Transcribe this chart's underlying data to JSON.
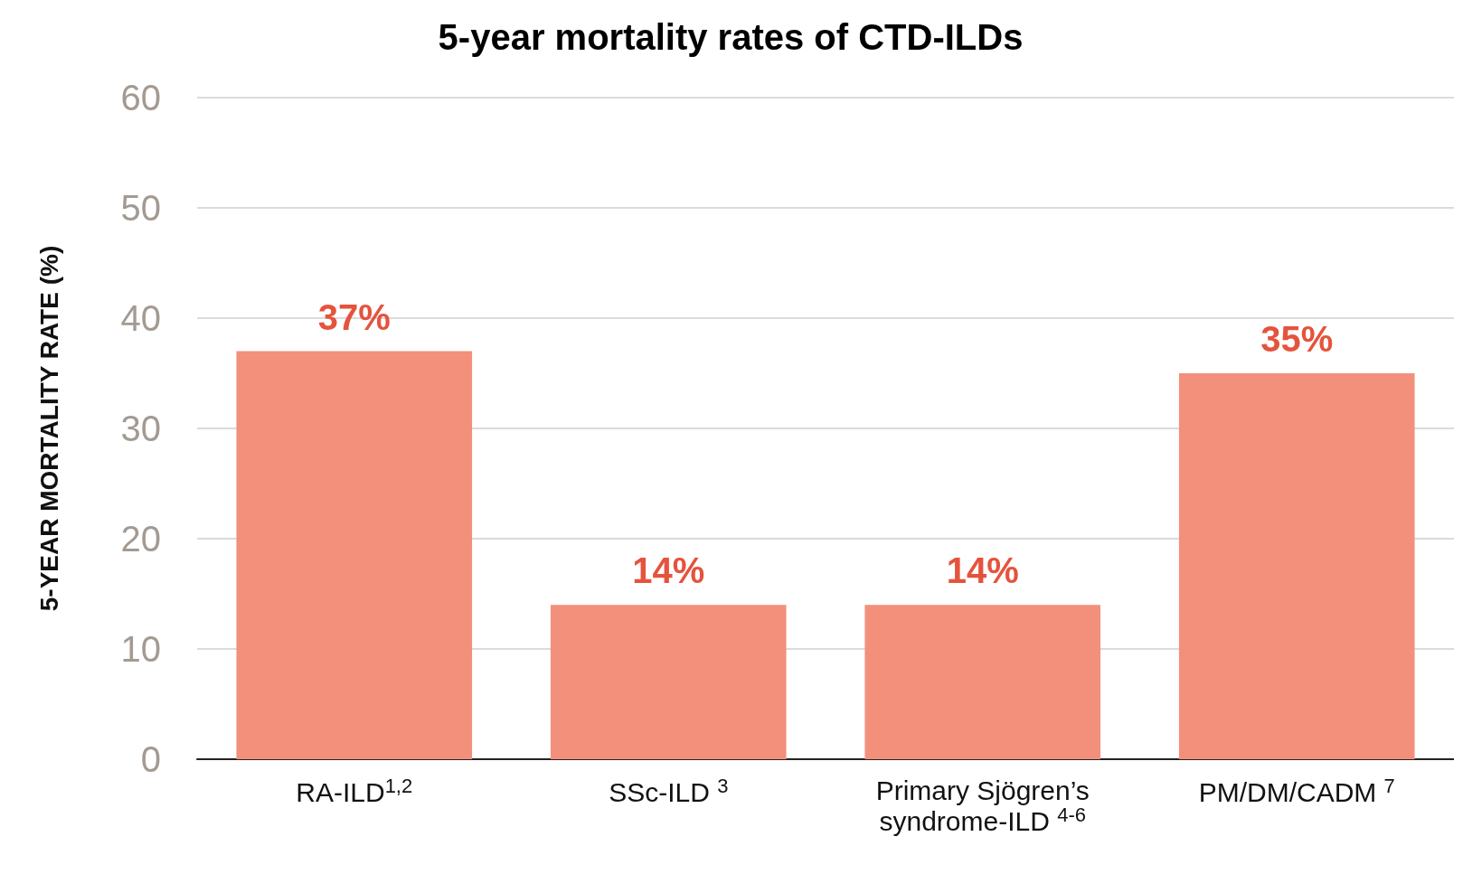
{
  "chart_data": {
    "type": "bar",
    "title": "5-year mortality rates of CTD-ILDs",
    "ylabel": "5-YEAR MORTALITY RATE (%)",
    "categories": [
      "RA-ILD$^{1,2}$",
      "SSc-ILD $^{3}$",
      "Primary Sjögren’s\nsyndrome-ILD $^{4-6}$",
      "PM/DM/CADM $^{7}$"
    ],
    "values": [
      37,
      14,
      14,
      35
    ],
    "color": "#f2907c",
    "value_labels": [
      "37%",
      "14%",
      "14%",
      "35%"
    ],
    "ylim": [
      0,
      60
    ],
    "yticks": [
      0,
      10,
      20,
      30,
      40,
      50,
      60
    ],
    "grid": "y"
  }
}
